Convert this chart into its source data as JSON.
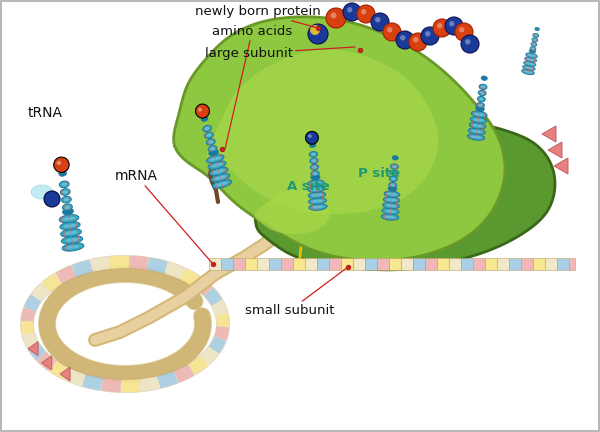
{
  "background_color": "#ffffff",
  "border_color": "#aaaaaa",
  "labels": {
    "newly_born_protein": "newly born protein",
    "amino_acids": "amino acids",
    "large_subunit": "large subunit",
    "trna": "tRNA",
    "mrna": "mRNA",
    "a_site": "A site",
    "p_site": "P site",
    "small_subunit": "small subunit"
  },
  "colors": {
    "large_subunit_green": "#8dc840",
    "large_subunit_mid": "#a8d848",
    "large_subunit_dark": "#6a9828",
    "large_subunit_inner": "#b0dc50",
    "small_subunit_green": "#5a9830",
    "small_subunit_dark": "#3a6818",
    "trna_teal": "#38a8c0",
    "trna_mid": "#58c0d8",
    "trna_light": "#88d8e8",
    "trna_dark": "#1878a0",
    "mrna_cream": "#f0e8c8",
    "mrna_blue": "#a8d0e8",
    "mrna_pink": "#f0b8b8",
    "mrna_yellow": "#f8e890",
    "mrna_backbone": "#d4b878",
    "amino_blue": "#1a3a9a",
    "amino_orange": "#d84010",
    "amino_yellow_top": "#f8c820",
    "arrow_yellow": "#e8c000",
    "arrow_orange_yellow": "#e09000",
    "pointer_red": "#cc2020",
    "site_teal": "#209870",
    "pink_chevron": "#e88080",
    "red_stripe": "#e06060",
    "white": "#ffffff",
    "black": "#101010",
    "dark_brown": "#704828"
  },
  "figsize": [
    6.0,
    4.32
  ],
  "dpi": 100
}
